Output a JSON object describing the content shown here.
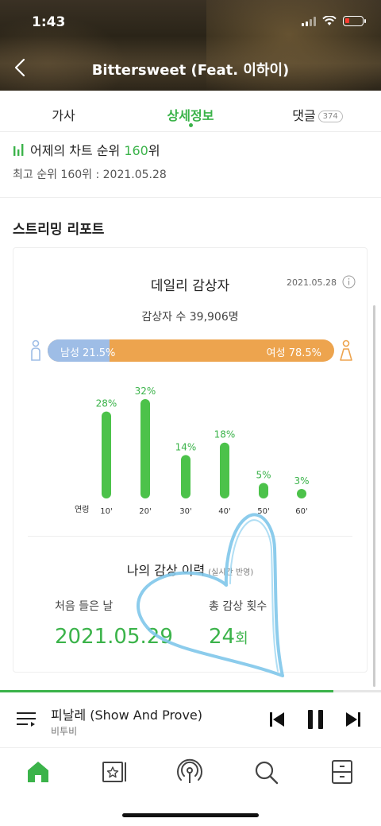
{
  "status": {
    "time": "1:43"
  },
  "header": {
    "title": "Bittersweet (Feat. 이하이)"
  },
  "tabs": [
    {
      "label": "가사"
    },
    {
      "label": "상세정보"
    },
    {
      "label": "댓글",
      "count": "374"
    }
  ],
  "chart": {
    "prefix": "어제의 차트 순위 ",
    "rank": "160",
    "suffix": "위",
    "best": "최고 순위 160위 : 2021.05.28"
  },
  "report": {
    "section_title": "스트리밍 리포트",
    "daily_title": "데일리 감상자",
    "date": "2021.05.28",
    "listeners": "감상자 수 39,906명",
    "male_label": "남성 21.5%",
    "female_label": "여성 78.5%",
    "male_fraction": 0.215,
    "history_title": "나의 감상 이력",
    "history_sub": "(실시간 반영)",
    "first_listen_label": "처음 들은 날",
    "first_listen_value": "2021.05.29",
    "total_label": "총 감상 횟수",
    "total_value": "24",
    "total_unit": "회"
  },
  "chart_data": {
    "type": "bar",
    "xlabel": "연령",
    "categories": [
      "10'",
      "20'",
      "30'",
      "40'",
      "50'",
      "60'"
    ],
    "values": [
      28,
      32,
      14,
      18,
      5,
      3
    ],
    "value_labels": [
      "28%",
      "32%",
      "14%",
      "18%",
      "5%",
      "3%"
    ],
    "ylim": [
      0,
      32
    ],
    "color": "#4cc24a"
  },
  "player": {
    "title": "피날레 (Show And Prove)",
    "artist": "비투비",
    "progress": 0.875
  },
  "colors": {
    "accent": "#3bb34a",
    "male": "#9ebde6",
    "female": "#eda44e"
  }
}
